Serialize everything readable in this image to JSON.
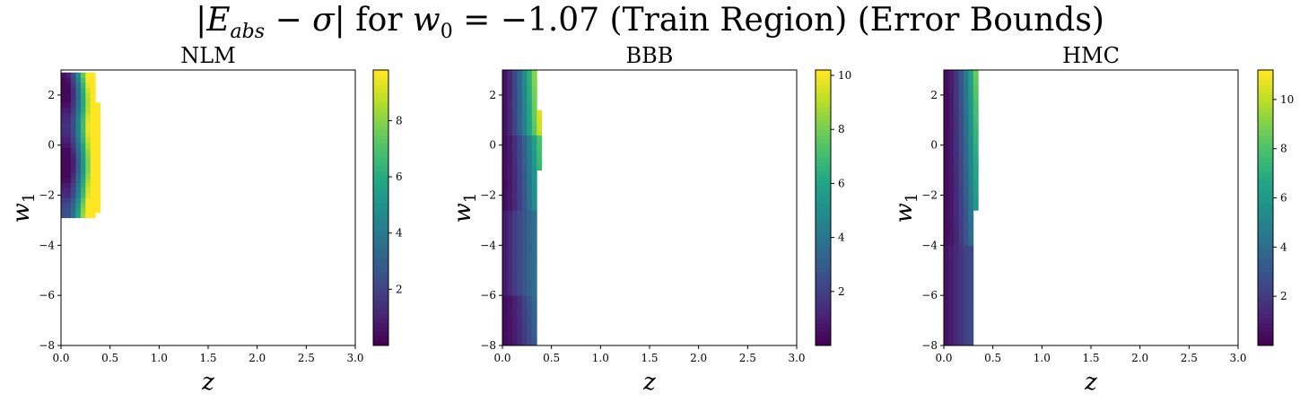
{
  "figure": {
    "title_parts": [
      "|E",
      "abs",
      " − σ| for w",
      "0",
      " = −1.07 (Train Region) (Error Bounds)"
    ]
  },
  "chart_data": [
    {
      "type": "heatmap",
      "title": "NLM",
      "xlabel": "z",
      "ylabel": "w_1",
      "xlim": [
        0.0,
        3.0
      ],
      "ylim": [
        -8,
        3
      ],
      "xticks": [
        "0.0",
        "0.5",
        "1.0",
        "1.5",
        "2.0",
        "2.5",
        "3.0"
      ],
      "yticks": [
        "-8",
        "-6",
        "-4",
        "-2",
        "0",
        "2"
      ],
      "colorbar": {
        "min": 0,
        "max": 9.8,
        "ticks": [
          2,
          4,
          6,
          8
        ]
      },
      "colormap": "viridis",
      "cell": {
        "dz": 0.05,
        "dw": 0.2
      },
      "data_region": {
        "z_max": 0.42,
        "w_min": -2.9,
        "w_max": 3.0
      },
      "note_values": "left edge ~0.5 near w1=0, rising to ~9.8 near z=0.4, w1≈-1"
    },
    {
      "type": "heatmap",
      "title": "BBB",
      "xlabel": "z",
      "ylabel": "w_1",
      "xlim": [
        0.0,
        3.0
      ],
      "ylim": [
        -8,
        3
      ],
      "xticks": [
        "0.0",
        "0.5",
        "1.0",
        "1.5",
        "2.0",
        "2.5",
        "3.0"
      ],
      "yticks": [
        "-8",
        "-6",
        "-4",
        "-2",
        "0",
        "2"
      ],
      "colorbar": {
        "min": 0,
        "max": 10.2,
        "ticks": [
          2,
          4,
          6,
          8,
          10
        ]
      },
      "colormap": "viridis",
      "cell": {
        "dz": 0.05,
        "dw": 0.2
      },
      "data_region": {
        "z_max": 0.5,
        "w_min": -8,
        "w_max": 3.0
      }
    },
    {
      "type": "heatmap",
      "title": "HMC",
      "xlabel": "z",
      "ylabel": "w_1",
      "xlim": [
        0.0,
        3.0
      ],
      "ylim": [
        -8,
        3
      ],
      "xticks": [
        "0.0",
        "0.5",
        "1.0",
        "1.5",
        "2.0",
        "2.5",
        "3.0"
      ],
      "yticks": [
        "-8",
        "-6",
        "-4",
        "-2",
        "0",
        "2"
      ],
      "colorbar": {
        "min": 0,
        "max": 11.2,
        "ticks": [
          2,
          4,
          6,
          8,
          10
        ]
      },
      "colormap": "viridis",
      "cell": {
        "dz": 0.05,
        "dw": 0.2
      },
      "data_region": {
        "z_max": 0.4,
        "w_min": -8,
        "w_max": 3.0
      }
    }
  ]
}
